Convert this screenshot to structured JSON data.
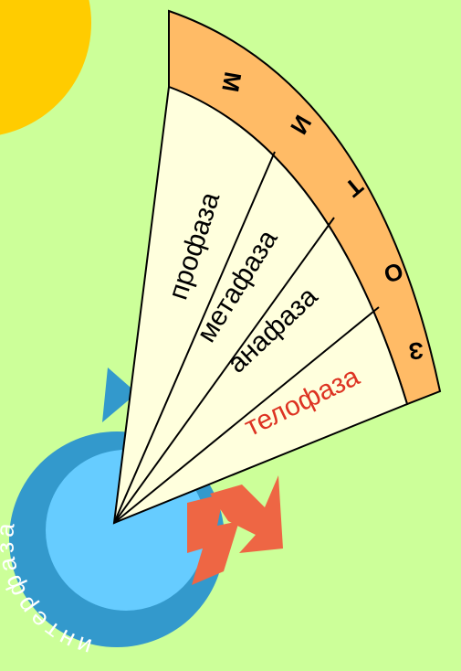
{
  "mitosis": {
    "letters": [
      "М",
      "И",
      "Т",
      "О",
      "З"
    ],
    "phases": [
      "профаза",
      "метафаза",
      "анафаза",
      "телофаза"
    ]
  },
  "interphase": "интерфаза"
}
